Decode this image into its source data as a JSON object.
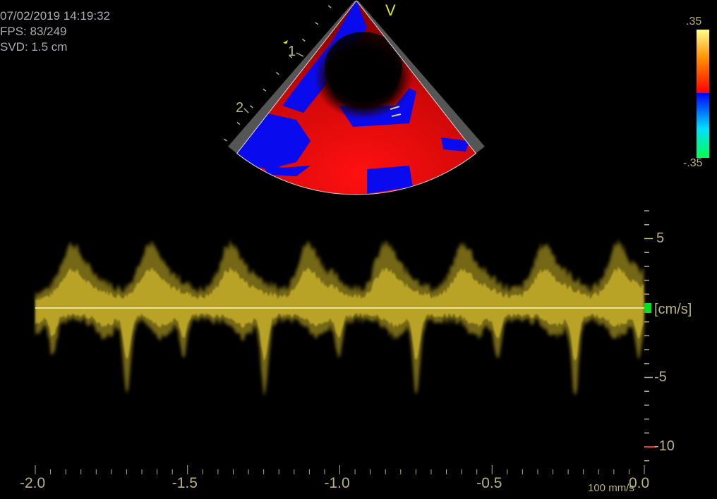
{
  "header": {
    "datetime": "07/02/2019 14:19:32",
    "fps": "FPS: 83/249",
    "svd": "SVD: 1.5 cm"
  },
  "sector": {
    "marker_v": "V",
    "segment_labels": [
      "1",
      "2"
    ]
  },
  "color_bar": {
    "max_label": ".35",
    "min_label": "-.35",
    "colors": [
      "#ffff80",
      "#ff8000",
      "#ff0000",
      "#0000ff",
      "#00e0ff",
      "#00ff60"
    ]
  },
  "doppler": {
    "unit_label": "[cm/s]",
    "y_ticks": [
      {
        "value": 5,
        "label": "5"
      },
      {
        "value": -5,
        "label": "-5"
      },
      {
        "value": -10,
        "label": "-10"
      }
    ],
    "y_range": [
      -11,
      7
    ],
    "x_ticks": [
      {
        "value": -2.0,
        "label": "-2.0"
      },
      {
        "value": -1.5,
        "label": "-1.5"
      },
      {
        "value": -1.0,
        "label": "-1.0"
      },
      {
        "value": -0.5,
        "label": "-0.5"
      },
      {
        "value": 0.0,
        "label": "0.0"
      }
    ],
    "x_range": [
      -2.0,
      0.0
    ],
    "sweep_speed": "100 mm/s",
    "trace_color": "#d4bc2a",
    "baseline_color": "#e8e0a0",
    "zero_marker_color": "#00e020",
    "limit_marker_color": "#ff3020"
  }
}
